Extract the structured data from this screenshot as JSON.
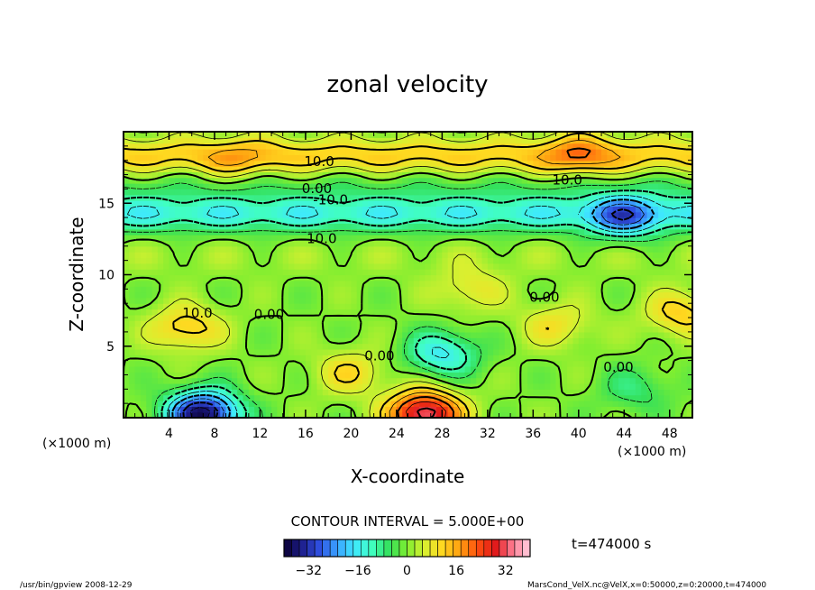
{
  "chart_data": {
    "type": "heatmap",
    "title": "zonal velocity",
    "xlabel": "X-coordinate",
    "ylabel": "Z-coordinate",
    "x_unit_left": "(×1000 m)",
    "x_unit_right": "(×1000 m)",
    "xlim": [
      0,
      50
    ],
    "ylim": [
      0,
      20
    ],
    "xticks": [
      "4",
      "8",
      "12",
      "16",
      "20",
      "24",
      "28",
      "32",
      "36",
      "40",
      "44",
      "48"
    ],
    "yticks": [
      "5",
      "10",
      "15"
    ],
    "contour_interval_text": "CONTOUR INTERVAL = 5.000E+00",
    "time_text": "t=474000 s",
    "colorbar": {
      "range": [
        -40,
        40
      ],
      "ticks": [
        "−32",
        "−16",
        "0",
        "16",
        "32"
      ],
      "tick_values": [
        -32,
        -16,
        0,
        16,
        32
      ],
      "colors": [
        "#0a0030",
        "#1d1d8a",
        "#2f4fe0",
        "#3aa0ff",
        "#3fe8ff",
        "#40ffc0",
        "#34e05a",
        "#80ee30",
        "#d8f030",
        "#ffd820",
        "#ffa010",
        "#ff5010",
        "#e01818",
        "#ff7a90",
        "#ffd0e0"
      ]
    },
    "contour_labels": [
      {
        "text": "10.0",
        "x": 17.2,
        "y": 17.9
      },
      {
        "text": "10.0",
        "x": 39.0,
        "y": 16.6
      },
      {
        "text": "0.00",
        "x": 17.0,
        "y": 16.0
      },
      {
        "text": "-10.0",
        "x": 18.2,
        "y": 15.2
      },
      {
        "text": "-10.0",
        "x": 17.2,
        "y": 12.5
      },
      {
        "text": "10.0",
        "x": 6.5,
        "y": 7.3
      },
      {
        "text": "0.00",
        "x": 12.8,
        "y": 7.2
      },
      {
        "text": "0.00",
        "x": 37.0,
        "y": 8.4
      },
      {
        "text": "0.00",
        "x": 22.5,
        "y": 4.3
      },
      {
        "text": "0.00",
        "x": 43.5,
        "y": 3.5
      }
    ],
    "field_features": [
      {
        "kind": "band",
        "z": 18.3,
        "value": 12
      },
      {
        "kind": "band",
        "z": 14.3,
        "value": -14
      },
      {
        "kind": "band",
        "z": 16.3,
        "value": -4
      },
      {
        "kind": "band",
        "z": 11.3,
        "value": 2
      },
      {
        "kind": "blob",
        "x": 5.5,
        "z": 6.3,
        "value": 13
      },
      {
        "kind": "blob",
        "x": 7.0,
        "z": 0.3,
        "value": -38
      },
      {
        "kind": "blob",
        "x": 26.5,
        "z": 0.3,
        "value": 34
      },
      {
        "kind": "blob",
        "x": 28.0,
        "z": 4.5,
        "value": -16
      },
      {
        "kind": "blob",
        "x": 20.0,
        "z": 3.2,
        "value": 10
      },
      {
        "kind": "blob",
        "x": 30.5,
        "z": 9.0,
        "value": 8
      },
      {
        "kind": "blob",
        "x": 38.0,
        "z": 6.5,
        "value": 9
      },
      {
        "kind": "blob",
        "x": 49.0,
        "z": 7.3,
        "value": 12
      },
      {
        "kind": "blob",
        "x": 44.0,
        "z": 14.0,
        "value": -16
      },
      {
        "kind": "blob",
        "x": 40.0,
        "z": 18.5,
        "value": 10
      },
      {
        "kind": "blob",
        "x": 10.0,
        "z": 18.0,
        "value": 6
      },
      {
        "kind": "blob",
        "x": 45.0,
        "z": 2.0,
        "value": -7
      }
    ]
  },
  "footer": {
    "left": "/usr/bin/gpview   2008-12-29",
    "right": "MarsCond_VelX.nc@VelX,x=0:50000,z=0:20000,t=474000"
  }
}
